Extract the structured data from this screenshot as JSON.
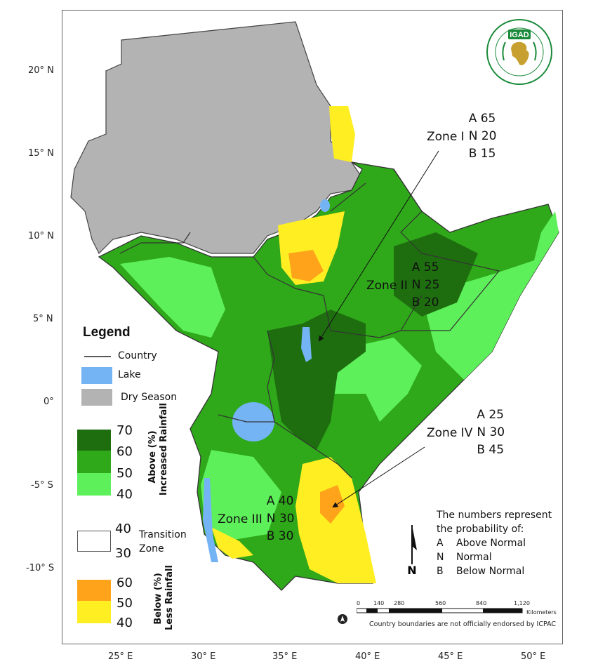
{
  "logo": {
    "text": "IGAD",
    "ring_text": "INTERGOVERNMENTAL AUTHORITY ON DEVELOPMENT"
  },
  "lat_ticks": [
    "20° N",
    "15° N",
    "10° N",
    "5° N",
    "0°",
    "-5° S",
    "-10° S"
  ],
  "lon_ticks": [
    "25° E",
    "30° E",
    "35° E",
    "40° E",
    "45° E",
    "50° E"
  ],
  "zones": [
    {
      "name": "Zone I",
      "A": "A 65",
      "N": "N 20",
      "B": "B 15"
    },
    {
      "name": "Zone II",
      "A": "A 55",
      "N": "N 25",
      "B": "B 20"
    },
    {
      "name": "Zone III",
      "A": "A 40",
      "N": "N 30",
      "B": "B 30"
    },
    {
      "name": "Zone IV",
      "A": "A 25",
      "N": "N 30",
      "B": "B 45"
    }
  ],
  "legend": {
    "title": "Legend",
    "country": "Country",
    "lake": "Lake",
    "dry_season": "Dry Season",
    "above_values": [
      "70",
      "60",
      "50",
      "40"
    ],
    "above_label_1": "Above (%)",
    "above_label_2": "Increased Rainfall",
    "transition_values": [
      "40",
      "30"
    ],
    "transition_label_1": "Transition",
    "transition_label_2": "Zone",
    "below_values": [
      "60",
      "50",
      "40"
    ],
    "below_label_1": "Below (%)",
    "below_label_2": "Less Rainfall"
  },
  "note": {
    "line1": "The numbers represent",
    "line2": "the probability of:",
    "rows": [
      {
        "key": "A",
        "label": "Above Normal"
      },
      {
        "key": "N",
        "label": "Normal"
      },
      {
        "key": "B",
        "label": "Below Normal"
      }
    ]
  },
  "north_label": "N",
  "scale": {
    "ticks": [
      "0",
      "140",
      "280",
      "560",
      "840",
      "1,120"
    ],
    "unit": "Kilometers"
  },
  "disclaimer": "Country boundaries are not officially endorsed by ICPAC",
  "colors": {
    "dark_green": "#1e6e10",
    "mid_green": "#2fa81a",
    "light_green": "#5ef05a",
    "yellow": "#ffee22",
    "orange": "#ffa31a",
    "grey": "#b3b3b3",
    "lake": "#74b4f4",
    "border": "#333333"
  }
}
